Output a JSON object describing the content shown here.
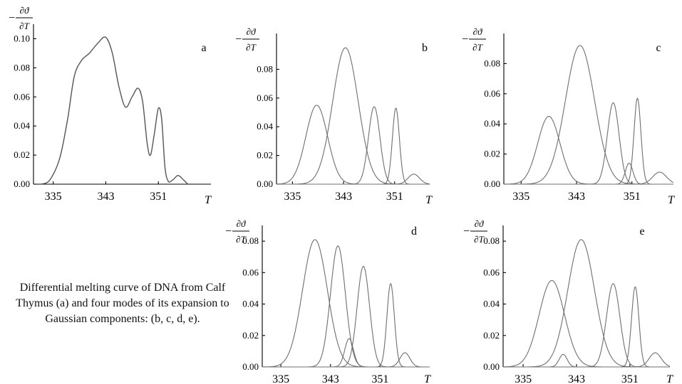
{
  "caption": "Differential melting curve of DNA from Calf Thymus (a) and four modes of its expansion to Gaussian components: (b, c, d, e).",
  "chart_data": [
    {
      "type": "line",
      "panel": "a",
      "xlabel": "T",
      "ylabel": "−∂ϑ/∂T",
      "xticks": [
        335,
        343,
        351
      ],
      "yticks": [
        "0.00",
        "0.02",
        "0.04",
        "0.06",
        "0.08",
        "0.10"
      ],
      "xlim": [
        332,
        359
      ],
      "ylim": [
        0,
        0.11
      ],
      "series": [
        {
          "points": [
            [
              333.2,
              0.0
            ],
            [
              334.5,
              0.003
            ],
            [
              336.0,
              0.018
            ],
            [
              337.2,
              0.045
            ],
            [
              338.2,
              0.074
            ],
            [
              339.3,
              0.085
            ],
            [
              340.5,
              0.09
            ],
            [
              341.8,
              0.097
            ],
            [
              343.0,
              0.101
            ],
            [
              344.0,
              0.09
            ],
            [
              345.0,
              0.067
            ],
            [
              346.0,
              0.053
            ],
            [
              347.0,
              0.06
            ],
            [
              347.9,
              0.066
            ],
            [
              348.6,
              0.057
            ],
            [
              349.3,
              0.028
            ],
            [
              349.8,
              0.02
            ],
            [
              350.4,
              0.035
            ],
            [
              351.0,
              0.052
            ],
            [
              351.5,
              0.045
            ],
            [
              352.0,
              0.012
            ],
            [
              352.5,
              0.002
            ],
            [
              353.2,
              0.003
            ],
            [
              354.0,
              0.006
            ],
            [
              354.8,
              0.003
            ],
            [
              355.5,
              0.0
            ]
          ]
        }
      ]
    },
    {
      "type": "line",
      "panel": "b",
      "xlabel": "T",
      "ylabel": "−∂ϑ/∂T",
      "xticks": [
        335,
        343,
        351
      ],
      "yticks": [
        "0.00",
        "0.02",
        "0.04",
        "0.06",
        "0.08"
      ],
      "xlim": [
        332.5,
        356.5
      ],
      "ylim": [
        0,
        0.105
      ],
      "series": [
        {
          "gaussian": {
            "center": 338.8,
            "height": 0.055,
            "sigma": 1.7
          }
        },
        {
          "gaussian": {
            "center": 343.3,
            "height": 0.095,
            "sigma": 2.0
          }
        },
        {
          "gaussian": {
            "center": 347.8,
            "height": 0.054,
            "sigma": 0.9
          }
        },
        {
          "gaussian": {
            "center": 351.2,
            "height": 0.053,
            "sigma": 0.55
          }
        },
        {
          "gaussian": {
            "center": 354.0,
            "height": 0.007,
            "sigma": 0.9
          }
        }
      ]
    },
    {
      "type": "line",
      "panel": "c",
      "xlabel": "T",
      "ylabel": "−∂ϑ/∂T",
      "xticks": [
        335,
        343,
        351
      ],
      "yticks": [
        "0.00",
        "0.02",
        "0.04",
        "0.06",
        "0.08"
      ],
      "xlim": [
        332.5,
        357
      ],
      "ylim": [
        0,
        0.1
      ],
      "series": [
        {
          "gaussian": {
            "center": 339.0,
            "height": 0.045,
            "sigma": 1.6
          }
        },
        {
          "gaussian": {
            "center": 343.5,
            "height": 0.092,
            "sigma": 2.1
          }
        },
        {
          "gaussian": {
            "center": 348.3,
            "height": 0.054,
            "sigma": 0.85
          }
        },
        {
          "gaussian": {
            "center": 350.6,
            "height": 0.014,
            "sigma": 0.55
          }
        },
        {
          "gaussian": {
            "center": 351.8,
            "height": 0.057,
            "sigma": 0.5
          }
        },
        {
          "gaussian": {
            "center": 355.0,
            "height": 0.008,
            "sigma": 1.0
          }
        }
      ]
    },
    {
      "type": "line",
      "panel": "d",
      "xlabel": "T",
      "ylabel": "−∂ϑ/∂T",
      "xticks": [
        335,
        343,
        351
      ],
      "yticks": [
        "0.00",
        "0.02",
        "0.04",
        "0.06",
        "0.08"
      ],
      "xlim": [
        332,
        359
      ],
      "ylim": [
        0,
        0.09
      ],
      "series": [
        {
          "gaussian": {
            "center": 340.5,
            "height": 0.081,
            "sigma": 2.0
          }
        },
        {
          "gaussian": {
            "center": 344.2,
            "height": 0.077,
            "sigma": 1.2
          }
        },
        {
          "gaussian": {
            "center": 346.0,
            "height": 0.018,
            "sigma": 0.7
          }
        },
        {
          "gaussian": {
            "center": 348.3,
            "height": 0.064,
            "sigma": 1.0
          }
        },
        {
          "gaussian": {
            "center": 352.7,
            "height": 0.053,
            "sigma": 0.6
          }
        },
        {
          "gaussian": {
            "center": 355.0,
            "height": 0.009,
            "sigma": 0.8
          }
        }
      ]
    },
    {
      "type": "line",
      "panel": "e",
      "xlabel": "T",
      "ylabel": "−∂ϑ/∂T",
      "xticks": [
        335,
        343,
        351
      ],
      "yticks": [
        "0.00",
        "0.02",
        "0.04",
        "0.06",
        "0.08"
      ],
      "xlim": [
        332,
        357
      ],
      "ylim": [
        0,
        0.09
      ],
      "series": [
        {
          "gaussian": {
            "center": 339.3,
            "height": 0.055,
            "sigma": 1.9
          }
        },
        {
          "gaussian": {
            "center": 341.0,
            "height": 0.008,
            "sigma": 0.6
          }
        },
        {
          "gaussian": {
            "center": 343.7,
            "height": 0.081,
            "sigma": 2.0
          }
        },
        {
          "gaussian": {
            "center": 348.5,
            "height": 0.053,
            "sigma": 1.0
          }
        },
        {
          "gaussian": {
            "center": 351.8,
            "height": 0.051,
            "sigma": 0.55
          }
        },
        {
          "gaussian": {
            "center": 354.8,
            "height": 0.009,
            "sigma": 0.9
          }
        }
      ]
    }
  ]
}
